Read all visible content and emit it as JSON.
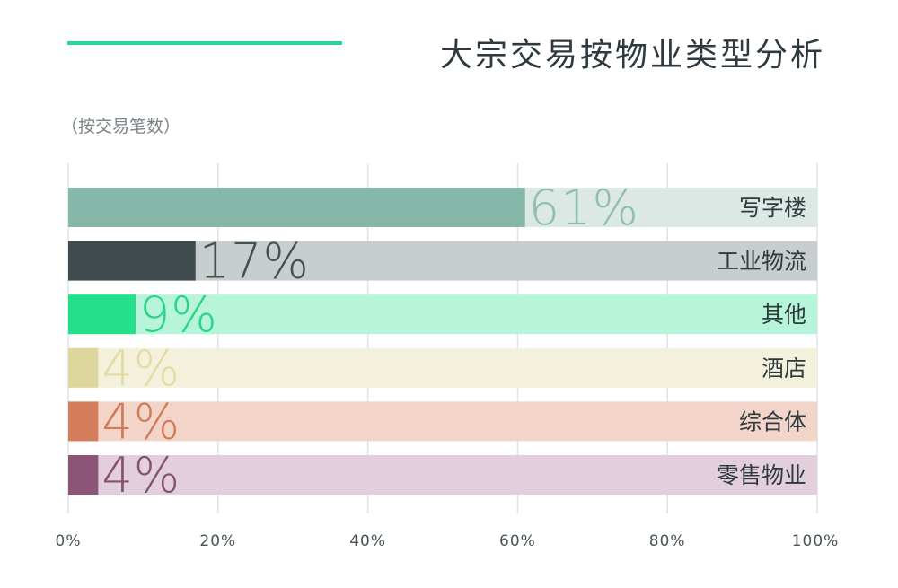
{
  "chart_data": {
    "type": "bar",
    "orientation": "horizontal",
    "title": "大宗交易按物业类型分析",
    "subtitle": "（按交易笔数）",
    "accent_color": "#2fd39a",
    "categories": [
      "写字楼",
      "工业物流",
      "其他",
      "酒店",
      "综合体",
      "零售物业"
    ],
    "values": [
      61,
      17,
      9,
      4,
      4,
      4
    ],
    "value_labels": [
      "61%",
      "17%",
      "9%",
      "4%",
      "4%",
      "4%"
    ],
    "x_ticks": [
      {
        "value": 0,
        "label": "0%"
      },
      {
        "value": 20,
        "label": "20%"
      },
      {
        "value": 40,
        "label": "40%"
      },
      {
        "value": 60,
        "label": "60%"
      },
      {
        "value": 80,
        "label": "80%"
      },
      {
        "value": 100,
        "label": "100%"
      }
    ],
    "xlim": [
      0,
      100
    ],
    "grid": true,
    "colors": {
      "bars": [
        "#85b8a8",
        "#3f4b4d",
        "#24e08a",
        "#ddd79d",
        "#d57e5d",
        "#8c5578"
      ],
      "tracks": [
        "#dce8e4",
        "#c8cecf",
        "#b6f5d9",
        "#f3f0dc",
        "#f3d4c8",
        "#e2cfdb"
      ],
      "value_labels": [
        "#8fbdae",
        "#46504f",
        "#2ad487",
        "#e3dba2",
        "#d27a58",
        "#84506f"
      ],
      "text": "#2e3a3d",
      "ticks": "#4a5456",
      "grid": "#dfe3e3"
    }
  }
}
